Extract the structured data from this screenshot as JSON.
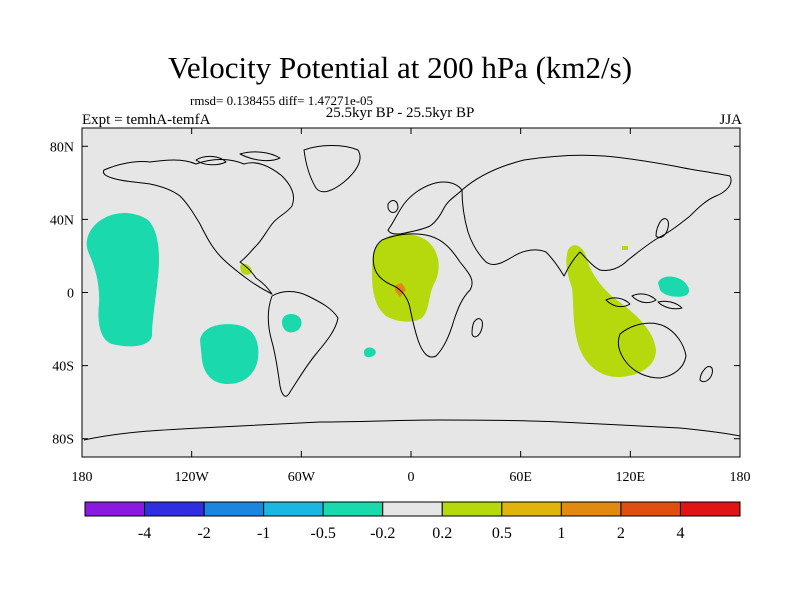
{
  "title": "Velocity Potential at 200 hPa (km2/s)",
  "stats_text": "rmsd= 0.138455 diff= 1.47271e-05",
  "experiment_text": "Expt = temhA-temfA",
  "period_text": "25.5kyr BP - 25.5kyr BP",
  "season_text": "JJA",
  "map": {
    "type": "filled-contour-map",
    "lon_range": [
      -180,
      180
    ],
    "lat_range": [
      -90,
      90
    ],
    "background_color": "#e6e6e6",
    "x_ticks": [
      {
        "label": "180",
        "lon": -180
      },
      {
        "label": "120W",
        "lon": -120
      },
      {
        "label": "60W",
        "lon": -60
      },
      {
        "label": "0",
        "lon": 0
      },
      {
        "label": "60E",
        "lon": 60
      },
      {
        "label": "120E",
        "lon": 120
      },
      {
        "label": "180",
        "lon": 180
      }
    ],
    "y_ticks": [
      {
        "label": "80N",
        "lat": 80
      },
      {
        "label": "40N",
        "lat": 40
      },
      {
        "label": "0",
        "lat": 0
      },
      {
        "label": "40S",
        "lat": -40
      },
      {
        "label": "80S",
        "lat": -80
      }
    ],
    "features": [
      {
        "name": "central-pacific-negative",
        "color": "#1ad9ad",
        "range": "-0.5 to -0.2",
        "lon": -155,
        "lat": 5
      },
      {
        "name": "southeast-pacific-negative",
        "color": "#1ad9ad",
        "range": "-0.5 to -0.2",
        "lon": -95,
        "lat": -30
      },
      {
        "name": "south-america-negative",
        "color": "#1ad9ad",
        "range": "-0.5 to -0.2",
        "lon": -63,
        "lat": -15
      },
      {
        "name": "south-atlantic-negative",
        "color": "#1ad9ad",
        "range": "-0.5 to -0.2",
        "lon": -23,
        "lat": -31
      },
      {
        "name": "west-pacific-negative",
        "color": "#1ad9ad",
        "range": "-0.5 to -0.2",
        "lon": 145,
        "lat": 5
      },
      {
        "name": "africa-positive",
        "color": "#b5d90c",
        "range": "0.2 to 0.5",
        "lon": -5,
        "lat": 12
      },
      {
        "name": "africa-core-positive",
        "color": "#e08a10",
        "range": "1 to 2",
        "lon": -7,
        "lat": 3
      },
      {
        "name": "indian-ocean-positive",
        "color": "#b5d90c",
        "range": "0.2 to 0.5",
        "lon": 100,
        "lat": -20
      },
      {
        "name": "central-america-positive",
        "color": "#b5d90c",
        "range": "0.2 to 0.5",
        "lon": -95,
        "lat": 15
      }
    ]
  },
  "colorbar": {
    "colors": [
      "#8a1ae0",
      "#2f2fe0",
      "#1a86e0",
      "#1ab8e0",
      "#1ad9ad",
      "#e6e6e6",
      "#b5d90c",
      "#e0b40c",
      "#e08a10",
      "#e04f10",
      "#e01414"
    ],
    "labels": [
      "-4",
      "-2",
      "-1",
      "-0.5",
      "-0.2",
      "0.2",
      "0.5",
      "1",
      "2",
      "4"
    ]
  }
}
